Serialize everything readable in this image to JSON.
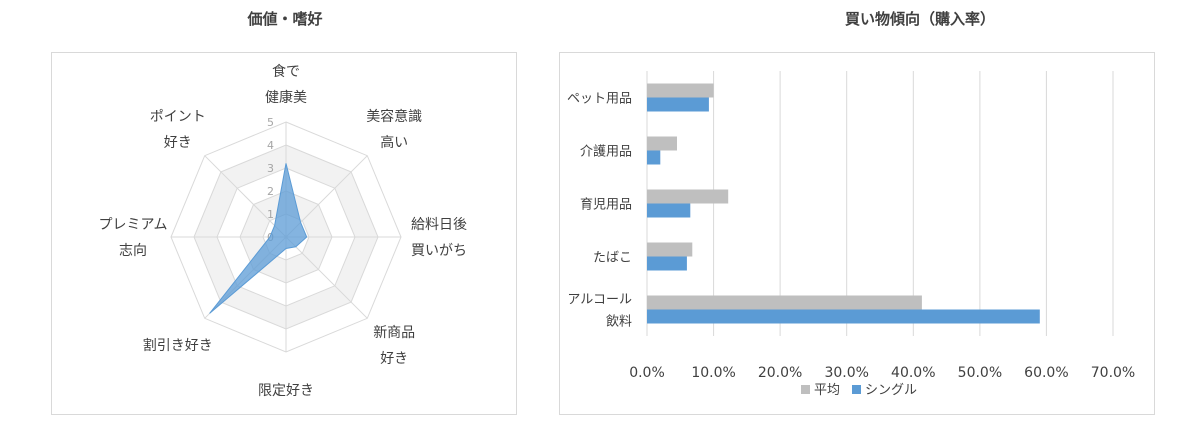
{
  "chart_data": [
    {
      "type": "radar",
      "title": "価値・嗜好",
      "axes": [
        [
          "食で",
          "健康美"
        ],
        [
          "美容意識",
          "高い"
        ],
        [
          "給料日後",
          "買いがち"
        ],
        [
          "新商品",
          "好き"
        ],
        [
          "限定好き"
        ],
        [
          "割引き好き"
        ],
        [
          "プレミアム",
          "志向"
        ],
        [
          "ポイント",
          "好き"
        ]
      ],
      "scale_labels": [
        "0",
        "1",
        "2",
        "3",
        "4",
        "5"
      ],
      "rmax": 5,
      "values": [
        3.2,
        0.9,
        0.9,
        0.6,
        0.5,
        4.7,
        0.7,
        0.7
      ],
      "colors": {
        "fill": "#5b9bd5",
        "ring_fill": "#f2f2f2",
        "grid": "#d9d9d9"
      }
    },
    {
      "type": "bar",
      "orientation": "horizontal",
      "title": "買い物傾向（購入率）",
      "categories": [
        [
          "ペット用品"
        ],
        [
          "介護用品"
        ],
        [
          "育児用品"
        ],
        [
          "たばこ"
        ],
        [
          "アルコール",
          "飲料"
        ]
      ],
      "series": [
        {
          "name": "平均",
          "values": [
            10.0,
            4.5,
            12.2,
            6.8,
            41.3
          ],
          "color": "#bfbfbf"
        },
        {
          "name": "シングル",
          "values": [
            9.3,
            2.0,
            6.5,
            6.0,
            59.0
          ],
          "color": "#5b9bd5"
        }
      ],
      "xlim": [
        0,
        70
      ],
      "xticks": [
        "0.0%",
        "10.0%",
        "20.0%",
        "30.0%",
        "40.0%",
        "50.0%",
        "60.0%",
        "70.0%"
      ],
      "legend": "bottom",
      "grid": true
    }
  ]
}
